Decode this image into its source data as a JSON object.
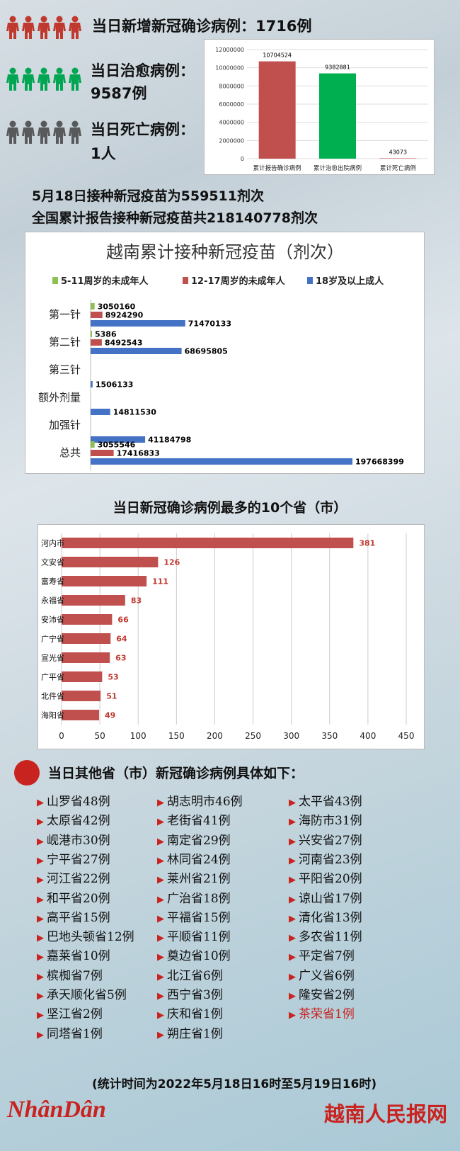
{
  "colors": {
    "red": "#c0392f",
    "green": "#00a651",
    "gray": "#58595b",
    "blue": "#4472c4",
    "lightgreen": "#8cc152",
    "accent": "#c9231f"
  },
  "stats": {
    "new_cases": "当日新增新冠确诊病例：1716例",
    "recovered_label": "当日治愈病例：",
    "recovered_value": "9587例",
    "deaths_label": "当日死亡病例：",
    "deaths_value": "1人"
  },
  "vaccination": {
    "line1": "5月18日接种新冠疫苗为559511剂次",
    "line2": "全国累计报告接种新冠疫苗共218140778剂次"
  },
  "chart_data": [
    {
      "type": "bar",
      "categories": [
        "累计报告确诊病例",
        "累计治愈出院病例",
        "累计死亡病例"
      ],
      "values": [
        10704524,
        9382881,
        43073
      ],
      "value_labels": [
        "10704524",
        "9382881",
        "43073"
      ],
      "colors": [
        "#c0504d",
        "#00b050",
        "#c0504d"
      ],
      "ylim": [
        0,
        12000000
      ],
      "yticks": [
        "0",
        "2000000",
        "4000000",
        "6000000",
        "8000000",
        "10000000",
        "12000000"
      ],
      "yticks_values": [
        0,
        2000000,
        4000000,
        6000000,
        8000000,
        10000000,
        12000000
      ]
    },
    {
      "type": "bar",
      "orientation": "horizontal",
      "title": "越南累计接种新冠疫苗（剂次）",
      "legend": [
        "5-11周岁的未成年人",
        "12-17周岁的未成年人",
        "18岁及以上成人"
      ],
      "legend_position": "top",
      "categories": [
        "第一针",
        "第二针",
        "第三针",
        "额外剂量",
        "加强针",
        "总共"
      ],
      "series": [
        {
          "name": "5-11周岁的未成年人",
          "color": "#8cc152",
          "values": [
            3050160,
            5386,
            null,
            null,
            null,
            3055546
          ]
        },
        {
          "name": "12-17周岁的未成年人",
          "color": "#c0504d",
          "values": [
            8924290,
            8492543,
            null,
            null,
            null,
            17416833
          ]
        },
        {
          "name": "18岁及以上成人",
          "color": "#4472c4",
          "values": [
            71470133,
            68695805,
            1506133,
            14811530,
            41184798,
            197668399
          ]
        }
      ],
      "xlim": [
        0,
        197668399
      ]
    },
    {
      "type": "bar",
      "orientation": "horizontal",
      "title": "当日新冠确诊病例最多的10个省（市）",
      "categories": [
        "河内市",
        "文安省",
        "富寿省",
        "永福省",
        "安沛省",
        "广宁省",
        "宣光省",
        "广平省",
        "北件省",
        "海阳省"
      ],
      "values": [
        381,
        126,
        111,
        83,
        66,
        64,
        63,
        53,
        51,
        49
      ],
      "color": "#c0504d",
      "xlim": [
        0,
        450
      ],
      "xticks": [
        "0",
        "50",
        "100",
        "150",
        "200",
        "250",
        "300",
        "350",
        "400",
        "450"
      ],
      "xticks_values": [
        0,
        50,
        100,
        150,
        200,
        250,
        300,
        350,
        400,
        450
      ]
    }
  ],
  "others_title": "当日其他省（市）新冠确诊病例具体如下：",
  "others": [
    [
      "山罗省48例",
      "胡志明市46例",
      "太平省43例"
    ],
    [
      "太原省42例",
      "老街省41例",
      "海防市31例"
    ],
    [
      "岘港市30例",
      "南定省29例",
      "兴安省27例"
    ],
    [
      "宁平省27例",
      "林同省24例",
      "河南省23例"
    ],
    [
      "河江省22例",
      "莱州省21例",
      "平阳省20例"
    ],
    [
      "和平省20例",
      "广治省18例",
      "谅山省17例"
    ],
    [
      "高平省15例",
      "平福省15例",
      "清化省13例"
    ],
    [
      "巴地头顿省12例",
      "平顺省11例",
      "多农省11例"
    ],
    [
      "嘉莱省10例",
      "奠边省10例",
      "平定省7例"
    ],
    [
      "槟椥省7例",
      "北江省6例",
      "广义省6例"
    ],
    [
      "承天顺化省5例",
      "西宁省3例",
      "隆安省2例"
    ],
    [
      "坚江省2例",
      "庆和省1例",
      "茶荣省1例"
    ],
    [
      "同塔省1例",
      "朔庄省1例",
      ""
    ]
  ],
  "footer_note": "(统计时间为2022年5月18日16时至5月19日16时)",
  "brand_left": "NhânDân",
  "brand_right": "越南人民报网"
}
